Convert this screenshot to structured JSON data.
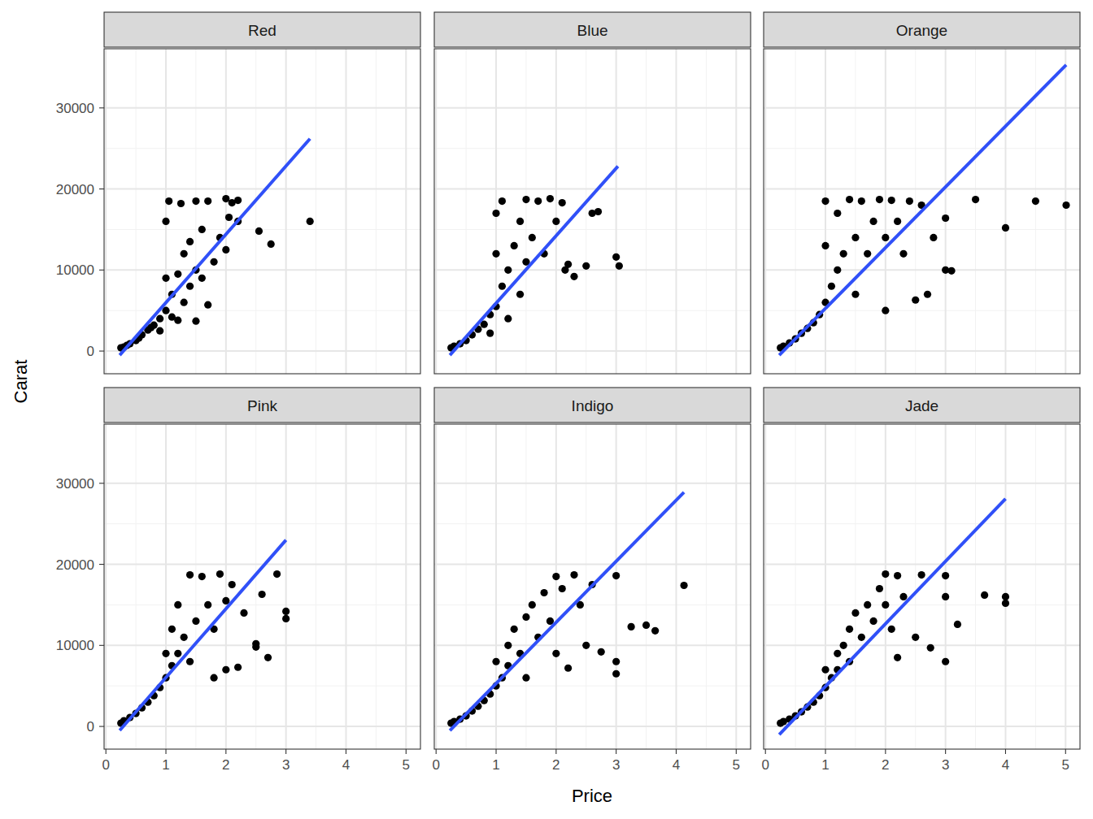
{
  "chart_data": {
    "type": "scatter",
    "x_label": "Price",
    "y_label": "Carat",
    "xlim": [
      -0.03,
      5.24
    ],
    "ylim": [
      -2800,
      37300
    ],
    "xticks": [
      0,
      1,
      2,
      3,
      4,
      5
    ],
    "yticks": [
      0,
      10000,
      20000,
      30000
    ],
    "grid": true,
    "panels": [
      {
        "title": "Red",
        "series": [
          {
            "type": "scatter",
            "color": "#000000",
            "marker": "circle",
            "x": [
              0.25,
              0.3,
              0.35,
              0.4,
              0.5,
              0.55,
              0.6,
              0.7,
              0.75,
              0.8,
              0.9,
              0.9,
              1.0,
              1.0,
              1.0,
              1.05,
              1.1,
              1.1,
              1.2,
              1.2,
              1.25,
              1.3,
              1.3,
              1.4,
              1.5,
              1.5,
              1.5,
              1.6,
              1.7,
              1.7,
              1.8,
              1.9,
              2.0,
              2.0,
              2.05,
              2.1,
              2.2,
              2.2,
              2.55,
              2.75,
              3.4,
              1.4,
              1.6
            ],
            "values": [
              400,
              500,
              700,
              900,
              1300,
              1600,
              2000,
              2600,
              2900,
              3200,
              4000,
              2500,
              5000,
              9000,
              16000,
              18500,
              7000,
              4200,
              9500,
              3800,
              18200,
              12000,
              6000,
              13500,
              18500,
              10000,
              3700,
              15000,
              18500,
              5700,
              11000,
              14000,
              18800,
              12500,
              16500,
              18300,
              16000,
              18600,
              14800,
              13200,
              16000,
              8000,
              9000
            ]
          },
          {
            "type": "line",
            "color": "#3050f8",
            "line_style": "solid",
            "x": [
              0.23,
              3.4
            ],
            "values": [
              -500,
              26200
            ]
          }
        ]
      },
      {
        "title": "Blue",
        "series": [
          {
            "type": "scatter",
            "color": "#000000",
            "marker": "circle",
            "x": [
              0.25,
              0.3,
              0.4,
              0.5,
              0.6,
              0.7,
              0.8,
              0.9,
              0.9,
              1.0,
              1.0,
              1.0,
              1.1,
              1.1,
              1.2,
              1.2,
              1.3,
              1.4,
              1.4,
              1.5,
              1.5,
              1.6,
              1.7,
              1.8,
              1.9,
              2.0,
              2.1,
              2.15,
              2.2,
              2.3,
              2.5,
              2.6,
              2.7,
              3.0,
              3.05
            ],
            "values": [
              400,
              600,
              900,
              1300,
              2000,
              2700,
              3300,
              4500,
              2200,
              5500,
              12000,
              17000,
              8000,
              18500,
              10000,
              4000,
              13000,
              16000,
              7000,
              18700,
              11000,
              14000,
              18500,
              12000,
              18800,
              16000,
              18300,
              10000,
              10700,
              9200,
              10500,
              17000,
              17200,
              11600,
              10500
            ]
          },
          {
            "type": "line",
            "color": "#3050f8",
            "line_style": "solid",
            "x": [
              0.23,
              3.03
            ],
            "values": [
              -500,
              22800
            ]
          }
        ]
      },
      {
        "title": "Orange",
        "series": [
          {
            "type": "scatter",
            "color": "#000000",
            "marker": "circle",
            "x": [
              0.25,
              0.3,
              0.4,
              0.5,
              0.6,
              0.7,
              0.8,
              0.9,
              1.0,
              1.0,
              1.0,
              1.1,
              1.2,
              1.2,
              1.3,
              1.4,
              1.5,
              1.5,
              1.6,
              1.7,
              1.8,
              1.9,
              2.0,
              2.0,
              2.1,
              2.2,
              2.3,
              2.4,
              2.5,
              2.6,
              2.7,
              2.8,
              3.0,
              3.0,
              3.1,
              3.5,
              4.0,
              4.5,
              5.01
            ],
            "values": [
              400,
              600,
              1000,
              1500,
              2200,
              2800,
              3500,
              4500,
              6000,
              13000,
              18500,
              8000,
              10000,
              17000,
              12000,
              18700,
              14000,
              7000,
              18500,
              12000,
              16000,
              18700,
              14000,
              5000,
              18600,
              16000,
              12000,
              18500,
              6300,
              18000,
              7000,
              14000,
              16400,
              10000,
              9900,
              18700,
              15200,
              18500,
              18000
            ]
          },
          {
            "type": "line",
            "color": "#3050f8",
            "line_style": "solid",
            "x": [
              0.23,
              5.01
            ],
            "values": [
              -500,
              35300
            ]
          }
        ]
      },
      {
        "title": "Pink",
        "series": [
          {
            "type": "scatter",
            "color": "#000000",
            "marker": "circle",
            "x": [
              0.25,
              0.3,
              0.4,
              0.5,
              0.6,
              0.7,
              0.8,
              0.9,
              1.0,
              1.0,
              1.1,
              1.1,
              1.2,
              1.2,
              1.3,
              1.4,
              1.4,
              1.5,
              1.6,
              1.7,
              1.8,
              1.8,
              1.9,
              2.0,
              2.0,
              2.1,
              2.2,
              2.3,
              2.5,
              2.5,
              2.6,
              2.7,
              2.85,
              3.0,
              3.0
            ],
            "values": [
              400,
              700,
              1100,
              1600,
              2300,
              3000,
              3800,
              4800,
              6000,
              9000,
              7500,
              12000,
              9000,
              15000,
              11000,
              18700,
              8000,
              13000,
              18500,
              15000,
              6000,
              12000,
              18800,
              7000,
              15500,
              17500,
              7300,
              14000,
              9800,
              10200,
              16300,
              8500,
              18800,
              14200,
              13300
            ]
          },
          {
            "type": "line",
            "color": "#3050f8",
            "line_style": "solid",
            "x": [
              0.23,
              3.0
            ],
            "values": [
              -500,
              23000
            ]
          }
        ]
      },
      {
        "title": "Indigo",
        "series": [
          {
            "type": "scatter",
            "color": "#000000",
            "marker": "circle",
            "x": [
              0.25,
              0.3,
              0.4,
              0.5,
              0.6,
              0.7,
              0.8,
              0.9,
              1.0,
              1.0,
              1.1,
              1.2,
              1.2,
              1.3,
              1.4,
              1.5,
              1.5,
              1.6,
              1.7,
              1.8,
              1.9,
              2.0,
              2.0,
              2.1,
              2.2,
              2.3,
              2.4,
              2.5,
              2.6,
              2.75,
              3.0,
              3.0,
              3.0,
              3.25,
              3.5,
              3.65,
              4.13
            ],
            "values": [
              400,
              600,
              900,
              1300,
              1900,
              2500,
              3200,
              4000,
              5000,
              8000,
              6000,
              7500,
              10000,
              12000,
              9000,
              13500,
              6000,
              15000,
              11000,
              16500,
              13000,
              18500,
              9000,
              17000,
              7200,
              18700,
              15000,
              10000,
              17500,
              9200,
              18600,
              8000,
              6500,
              12300,
              12500,
              11800,
              17400
            ]
          },
          {
            "type": "line",
            "color": "#3050f8",
            "line_style": "solid",
            "x": [
              0.23,
              4.13
            ],
            "values": [
              -500,
              28900
            ]
          }
        ]
      },
      {
        "title": "Jade",
        "series": [
          {
            "type": "scatter",
            "color": "#000000",
            "marker": "circle",
            "x": [
              0.25,
              0.3,
              0.4,
              0.5,
              0.6,
              0.7,
              0.8,
              0.9,
              1.0,
              1.0,
              1.1,
              1.2,
              1.2,
              1.3,
              1.4,
              1.4,
              1.5,
              1.6,
              1.7,
              1.8,
              1.9,
              2.0,
              2.0,
              2.1,
              2.2,
              2.2,
              2.3,
              2.5,
              2.6,
              2.75,
              3.0,
              3.0,
              3.0,
              3.2,
              3.65,
              4.0,
              4.0
            ],
            "values": [
              400,
              600,
              900,
              1300,
              1800,
              2400,
              3000,
              3800,
              4800,
              7000,
              6000,
              7000,
              9000,
              10000,
              8000,
              12000,
              14000,
              11000,
              15000,
              13000,
              17000,
              18800,
              15000,
              12000,
              18600,
              8500,
              16000,
              11000,
              18700,
              9700,
              18600,
              16000,
              8000,
              12600,
              16200,
              16000,
              15200
            ]
          },
          {
            "type": "line",
            "color": "#3050f8",
            "line_style": "solid",
            "x": [
              0.23,
              4.0
            ],
            "values": [
              -1000,
              28100
            ]
          }
        ]
      }
    ]
  }
}
